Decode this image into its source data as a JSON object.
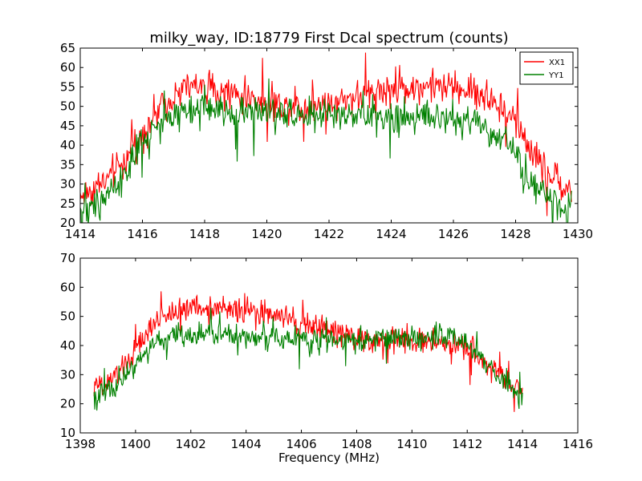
{
  "chart_data": [
    {
      "type": "line",
      "title": "milky_way, ID:18779 First Dcal spectrum (counts)",
      "xlabel": "",
      "ylabel": "",
      "xlim": [
        1414,
        1430
      ],
      "ylim": [
        20,
        65
      ],
      "xticks": [
        1414,
        1416,
        1418,
        1420,
        1422,
        1424,
        1426,
        1428,
        1430
      ],
      "yticks": [
        20,
        25,
        30,
        35,
        40,
        45,
        50,
        55,
        60,
        65
      ],
      "grid": false,
      "legend": "top-right",
      "series": [
        {
          "name": "XX1",
          "color": "#ff0000",
          "x": [
            1414.0,
            1414.5,
            1415.0,
            1415.5,
            1416.0,
            1416.5,
            1417.0,
            1417.5,
            1418.0,
            1418.5,
            1419.0,
            1419.5,
            1420.0,
            1420.5,
            1421.0,
            1421.5,
            1422.0,
            1422.5,
            1423.0,
            1423.5,
            1424.0,
            1424.5,
            1425.0,
            1425.5,
            1426.0,
            1426.5,
            1427.0,
            1427.5,
            1428.0,
            1428.5,
            1429.0,
            1429.5,
            1429.8
          ],
          "y": [
            27,
            29,
            32,
            37,
            43,
            49,
            53,
            55,
            55,
            54,
            53,
            52,
            51,
            50,
            50,
            50,
            51,
            52,
            53,
            54,
            54,
            55,
            55,
            55,
            55,
            54,
            53,
            50,
            46,
            39,
            33,
            30,
            28
          ]
        },
        {
          "name": "YY1",
          "color": "#008000",
          "x": [
            1414.0,
            1414.5,
            1415.0,
            1415.5,
            1416.0,
            1416.5,
            1417.0,
            1417.5,
            1418.0,
            1418.5,
            1419.0,
            1419.5,
            1420.0,
            1420.5,
            1421.0,
            1421.5,
            1422.0,
            1422.5,
            1423.0,
            1423.5,
            1424.0,
            1424.5,
            1425.0,
            1425.5,
            1426.0,
            1426.5,
            1427.0,
            1427.5,
            1428.0,
            1428.5,
            1429.0,
            1429.5,
            1429.8
          ],
          "y": [
            23,
            25,
            28,
            34,
            40,
            45,
            48,
            50,
            50,
            49,
            49,
            49,
            48,
            48,
            48,
            48,
            48,
            47,
            47,
            47,
            47,
            47,
            47,
            47,
            47,
            46,
            45,
            42,
            37,
            31,
            27,
            24,
            23
          ]
        }
      ]
    },
    {
      "type": "line",
      "title": "",
      "xlabel": "Frequency (MHz)",
      "ylabel": "",
      "xlim": [
        1398,
        1416
      ],
      "ylim": [
        10,
        70
      ],
      "xticks": [
        1398,
        1400,
        1402,
        1404,
        1406,
        1408,
        1410,
        1412,
        1414,
        1416
      ],
      "yticks": [
        10,
        20,
        30,
        40,
        50,
        60,
        70
      ],
      "grid": false,
      "series": [
        {
          "color": "#ff0000",
          "x": [
            1398.5,
            1399.0,
            1399.5,
            1400.0,
            1400.5,
            1401.0,
            1401.5,
            1402.0,
            1402.5,
            1403.0,
            1403.5,
            1404.0,
            1404.5,
            1405.0,
            1405.5,
            1406.0,
            1406.5,
            1407.0,
            1407.5,
            1408.0,
            1408.5,
            1409.0,
            1409.5,
            1410.0,
            1410.5,
            1411.0,
            1411.5,
            1412.0,
            1412.5,
            1413.0,
            1413.5,
            1414.0
          ],
          "y": [
            25,
            27,
            32,
            38,
            45,
            50,
            52,
            53,
            53,
            53,
            52,
            52,
            51,
            50,
            49,
            47,
            46,
            45,
            44,
            43,
            42,
            42,
            42,
            41,
            41,
            41,
            40,
            39,
            36,
            32,
            27,
            25
          ]
        },
        {
          "color": "#008000",
          "x": [
            1398.5,
            1399.0,
            1399.5,
            1400.0,
            1400.5,
            1401.0,
            1401.5,
            1402.0,
            1402.5,
            1403.0,
            1403.5,
            1404.0,
            1404.5,
            1405.0,
            1405.5,
            1406.0,
            1406.5,
            1407.0,
            1407.5,
            1408.0,
            1408.5,
            1409.0,
            1409.5,
            1410.0,
            1410.5,
            1411.0,
            1411.5,
            1412.0,
            1412.5,
            1413.0,
            1413.5,
            1414.0
          ],
          "y": [
            22,
            24,
            28,
            34,
            39,
            42,
            44,
            44,
            44,
            44,
            44,
            43,
            43,
            43,
            42,
            42,
            42,
            42,
            42,
            42,
            42,
            42,
            42,
            43,
            43,
            43,
            42,
            40,
            36,
            31,
            26,
            23
          ]
        }
      ]
    }
  ]
}
